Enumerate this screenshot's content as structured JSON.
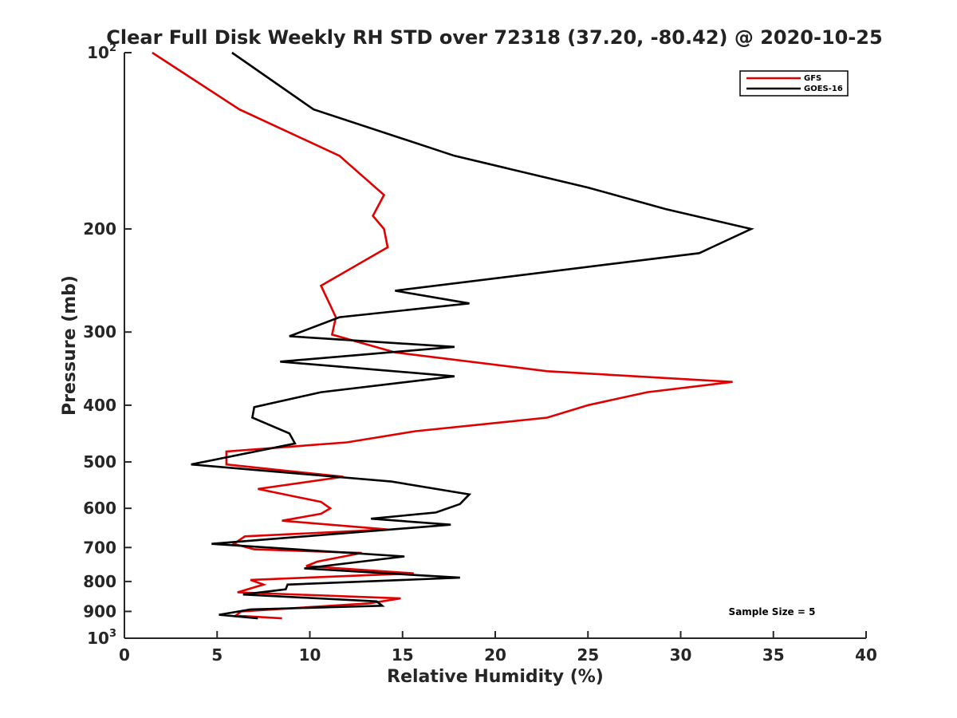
{
  "chart_data": {
    "type": "line",
    "title": "Clear Full Disk Weekly RH STD over 72318 (37.20, -80.42) @ 2020-10-25",
    "xlabel": "Relative Humidity (%)",
    "ylabel": "Pressure (mb)",
    "xlim": [
      0,
      40
    ],
    "ylim": [
      100,
      1000
    ],
    "yscale": "log",
    "y_reversed": true,
    "x_ticks": [
      0,
      5,
      10,
      15,
      20,
      25,
      30,
      35,
      40
    ],
    "y_ticks": [
      {
        "value": 100,
        "label": "10",
        "sup": "2"
      },
      {
        "value": 200,
        "label": "200"
      },
      {
        "value": 300,
        "label": "300"
      },
      {
        "value": 400,
        "label": "400"
      },
      {
        "value": 500,
        "label": "500"
      },
      {
        "value": 600,
        "label": "600"
      },
      {
        "value": 700,
        "label": "700"
      },
      {
        "value": 800,
        "label": "800"
      },
      {
        "value": 900,
        "label": "900"
      },
      {
        "value": 1000,
        "label": "10",
        "sup": "3"
      }
    ],
    "grid": false,
    "legend_position": "top-right",
    "series": [
      {
        "name": "GFS",
        "color": "#e00000",
        "points": [
          [
            1.5,
            100
          ],
          [
            6.2,
            125
          ],
          [
            11.6,
            150
          ],
          [
            14.0,
            175
          ],
          [
            13.4,
            190
          ],
          [
            14.0,
            200
          ],
          [
            14.2,
            215
          ],
          [
            10.6,
            250
          ],
          [
            11.1,
            270
          ],
          [
            11.4,
            283
          ],
          [
            11.2,
            303
          ],
          [
            14.6,
            325
          ],
          [
            22.8,
            350
          ],
          [
            32.8,
            365
          ],
          [
            28.2,
            380
          ],
          [
            25.0,
            400
          ],
          [
            22.8,
            420
          ],
          [
            15.7,
            443
          ],
          [
            12.0,
            463
          ],
          [
            5.5,
            480
          ],
          [
            5.5,
            505
          ],
          [
            11.8,
            530
          ],
          [
            7.2,
            556
          ],
          [
            10.6,
            585
          ],
          [
            11.1,
            600
          ],
          [
            10.6,
            613
          ],
          [
            8.5,
            630
          ],
          [
            14.2,
            652
          ],
          [
            6.5,
            670
          ],
          [
            5.9,
            690
          ],
          [
            7.0,
            705
          ],
          [
            12.8,
            715
          ],
          [
            10.4,
            740
          ],
          [
            9.8,
            753
          ],
          [
            15.6,
            775
          ],
          [
            6.8,
            795
          ],
          [
            7.5,
            810
          ],
          [
            6.1,
            835
          ],
          [
            14.9,
            855
          ],
          [
            13.2,
            872
          ],
          [
            6.3,
            900
          ],
          [
            6.0,
            915
          ],
          [
            8.5,
            925
          ]
        ]
      },
      {
        "name": "GOES-16",
        "color": "#000000",
        "points": [
          [
            5.8,
            100
          ],
          [
            10.2,
            125
          ],
          [
            17.8,
            150
          ],
          [
            25.0,
            170
          ],
          [
            29.2,
            185
          ],
          [
            33.8,
            200
          ],
          [
            31.0,
            220
          ],
          [
            14.6,
            255
          ],
          [
            18.6,
            268
          ],
          [
            11.6,
            283
          ],
          [
            8.9,
            305
          ],
          [
            17.8,
            318
          ],
          [
            8.4,
            337
          ],
          [
            17.8,
            357
          ],
          [
            10.6,
            380
          ],
          [
            7.0,
            403
          ],
          [
            6.9,
            420
          ],
          [
            8.9,
            447
          ],
          [
            9.2,
            465
          ],
          [
            3.6,
            505
          ],
          [
            14.4,
            540
          ],
          [
            18.6,
            568
          ],
          [
            18.1,
            590
          ],
          [
            16.8,
            610
          ],
          [
            13.3,
            625
          ],
          [
            17.6,
            640
          ],
          [
            4.7,
            690
          ],
          [
            15.1,
            725
          ],
          [
            9.7,
            760
          ],
          [
            18.1,
            788
          ],
          [
            8.8,
            810
          ],
          [
            8.7,
            825
          ],
          [
            6.4,
            842
          ],
          [
            13.6,
            865
          ],
          [
            13.9,
            880
          ],
          [
            6.8,
            893
          ],
          [
            5.1,
            912
          ],
          [
            7.2,
            925
          ]
        ]
      }
    ],
    "annotations": [
      {
        "text": "Sample Size = 5"
      }
    ]
  }
}
